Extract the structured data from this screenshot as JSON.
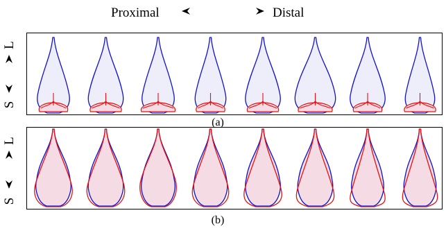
{
  "header": {
    "left_label": "Proximal",
    "right_label": "Distal",
    "left_arrow_icon": "arrowhead-left-icon",
    "right_arrow_icon": "arrowhead-right-icon"
  },
  "axis": {
    "top_label": "L",
    "bottom_label": "S",
    "up_arrow_icon": "arrowhead-up-icon",
    "down_arrow_icon": "arrowhead-down-icon"
  },
  "panels": [
    {
      "caption": "(a)",
      "variant": "a"
    },
    {
      "caption": "(b)",
      "variant": "b"
    }
  ],
  "colors": {
    "blue_stroke": "#1010d0",
    "blue_fill": "#eeeefb",
    "red_stroke": "#e81010",
    "pink_fill": "#f4dbe4"
  },
  "shape_count": 8
}
